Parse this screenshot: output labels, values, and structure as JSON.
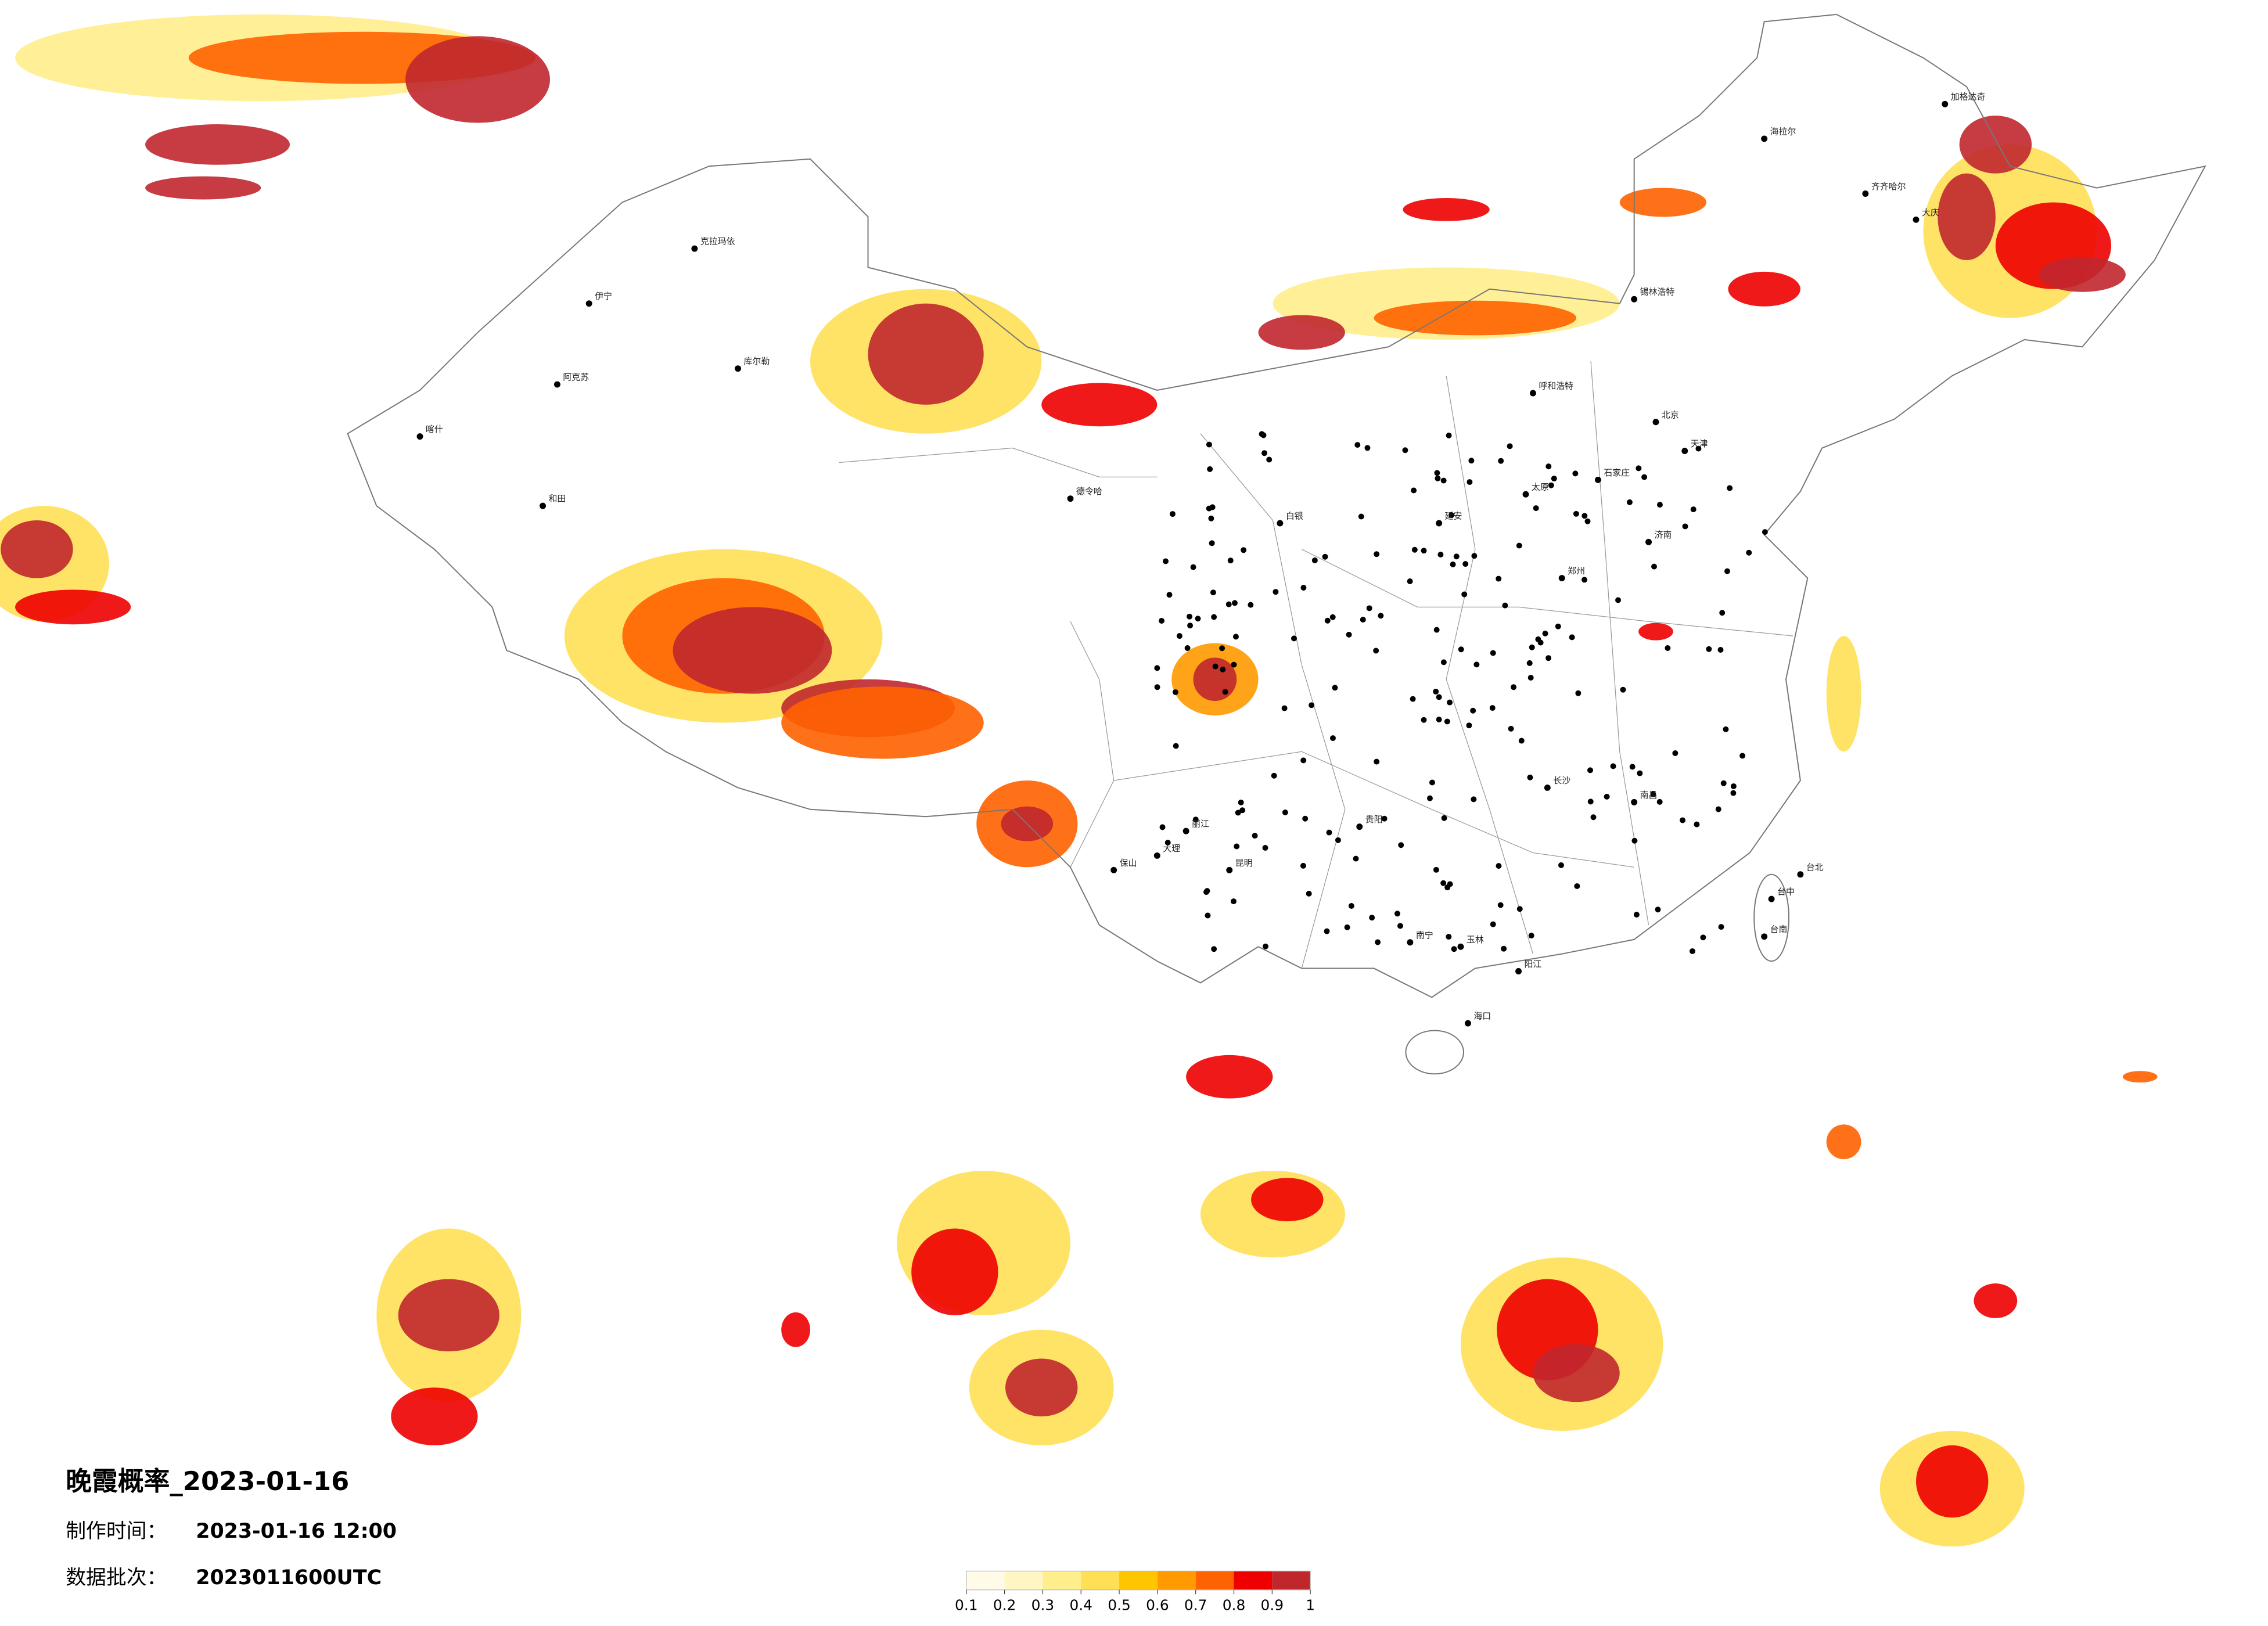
{
  "title": "晚霞概率_2023-01-16",
  "made_label": "制作时间：",
  "made_time": "2023-01-16 12:00",
  "batch_label": "数据批次：",
  "batch": "2023011600UTC",
  "colorbar": {
    "ticks": [
      0.1,
      0.2,
      0.3,
      0.4,
      0.5,
      0.6,
      0.7,
      0.8,
      0.9,
      1
    ],
    "colors": [
      "#fffbe8",
      "#fff6c4",
      "#ffee8c",
      "#ffe055",
      "#ffc600",
      "#ff9a00",
      "#ff6200",
      "#ee0000",
      "#c0272d"
    ]
  },
  "cities": [
    "加格达奇",
    "海拉尔",
    "齐齐哈尔",
    "大庆",
    "锡林浩特",
    "克拉玛依",
    "伊宁",
    "阿克苏",
    "喀什",
    "和田",
    "库尔勒",
    "德令哈",
    "白银",
    "延安",
    "呼和浩特",
    "北京",
    "天津",
    "石家庄",
    "太原",
    "郑州",
    "济南",
    "南昌",
    "长沙",
    "贵阳",
    "昆明",
    "南宁",
    "海口",
    "台北",
    "台中",
    "台南",
    "大理",
    "保山",
    "丽江",
    "玉林",
    "阳江"
  ]
}
